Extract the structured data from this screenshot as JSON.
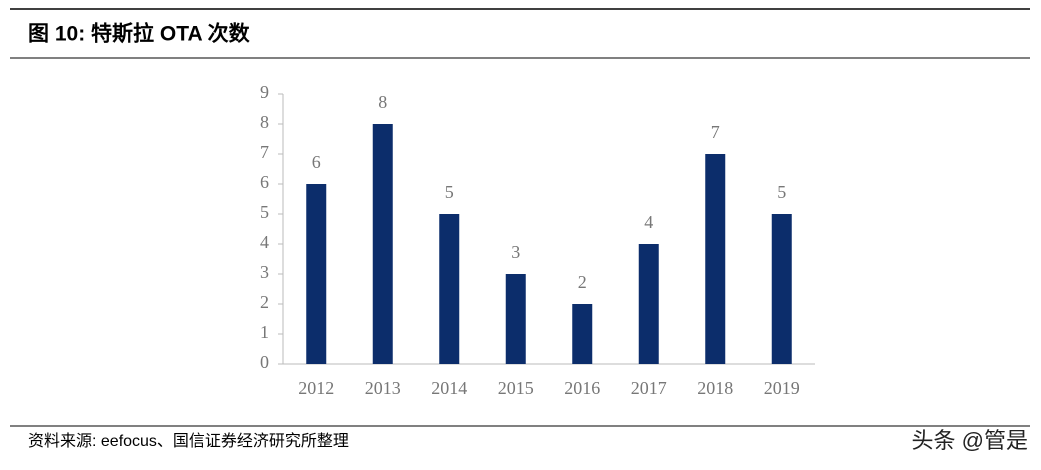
{
  "chart_data": {
    "type": "bar",
    "title": "图 10:  特斯拉 OTA 次数",
    "categories": [
      "2012",
      "2013",
      "2014",
      "2015",
      "2016",
      "2017",
      "2018",
      "2019"
    ],
    "values": [
      6,
      8,
      5,
      3,
      2,
      4,
      7,
      5
    ],
    "color": "#0c2d6b",
    "ylim": [
      0,
      9
    ],
    "yticks": [
      0,
      1,
      2,
      3,
      4,
      5,
      6,
      7,
      8,
      9
    ],
    "grid": false
  },
  "source": "资料来源: eefocus、国信证券经济研究所整理",
  "watermark": "头条 @管是"
}
